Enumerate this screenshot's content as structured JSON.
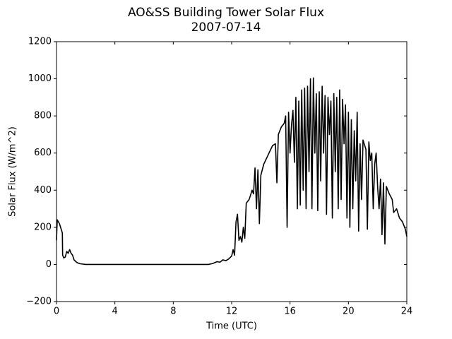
{
  "chart_data": {
    "type": "line",
    "title": "AO&SS Building Tower Solar Flux",
    "subtitle": "2007-07-14",
    "xlabel": "Time (UTC)",
    "ylabel": "Solar Flux (W/m^2)",
    "xlim": [
      0,
      24
    ],
    "xticks": [
      0,
      4,
      8,
      12,
      16,
      20,
      24
    ],
    "ylim": [
      -200,
      1200
    ],
    "yticks": [
      {
        "value": -200,
        "label": "−200"
      },
      0,
      200,
      400,
      600,
      800,
      1000,
      1200
    ],
    "series": [
      {
        "color": "#000000",
        "x": [
          0,
          0.05,
          0.2,
          0.4,
          0.42,
          0.5,
          0.6,
          0.7,
          0.8,
          0.9,
          1.0,
          1.1,
          1.2,
          1.4,
          1.6,
          2.0,
          4,
          8,
          10.4,
          10.7,
          11,
          11.2,
          11.4,
          11.6,
          11.8,
          12.0,
          12.1,
          12.2,
          12.3,
          12.4,
          12.5,
          12.6,
          12.7,
          12.8,
          12.9,
          13.0,
          13.2,
          13.4,
          13.5,
          13.6,
          13.7,
          13.8,
          13.9,
          14.0,
          14.2,
          14.5,
          14.8,
          15.0,
          15.1,
          15.2,
          15.4,
          15.6,
          15.7,
          15.8,
          15.9,
          16.0,
          16.1,
          16.2,
          16.3,
          16.4,
          16.5,
          16.6,
          16.7,
          16.8,
          16.9,
          17.0,
          17.1,
          17.2,
          17.3,
          17.4,
          17.5,
          17.6,
          17.7,
          17.8,
          17.9,
          18.0,
          18.1,
          18.2,
          18.3,
          18.4,
          18.5,
          18.6,
          18.7,
          18.8,
          18.9,
          19.0,
          19.1,
          19.2,
          19.3,
          19.4,
          19.5,
          19.6,
          19.7,
          19.8,
          19.9,
          20.0,
          20.1,
          20.2,
          20.3,
          20.4,
          20.5,
          20.6,
          20.7,
          20.8,
          20.9,
          21.0,
          21.2,
          21.3,
          21.4,
          21.5,
          21.6,
          21.7,
          21.8,
          21.9,
          22.0,
          22.1,
          22.2,
          22.3,
          22.4,
          22.5,
          22.6,
          22.8,
          23.0,
          23.1,
          23.3,
          23.5,
          23.7,
          23.9,
          24.0
        ],
        "values": [
          130,
          240,
          220,
          170,
          50,
          35,
          40,
          70,
          60,
          80,
          60,
          50,
          25,
          10,
          4,
          0,
          0,
          0,
          0,
          5,
          15,
          12,
          25,
          20,
          30,
          45,
          80,
          50,
          230,
          270,
          130,
          150,
          120,
          200,
          140,
          330,
          350,
          400,
          380,
          520,
          300,
          510,
          220,
          480,
          540,
          590,
          640,
          650,
          440,
          700,
          740,
          760,
          800,
          200,
          820,
          600,
          750,
          830,
          550,
          900,
          300,
          880,
          320,
          940,
          400,
          950,
          300,
          960,
          500,
          1000,
          300,
          1005,
          600,
          920,
          290,
          930,
          450,
          960,
          600,
          910,
          270,
          900,
          700,
          880,
          250,
          920,
          500,
          900,
          300,
          940,
          350,
          890,
          650,
          860,
          250,
          820,
          200,
          780,
          300,
          720,
          450,
          820,
          180,
          650,
          350,
          670,
          620,
          190,
          660,
          560,
          600,
          300,
          540,
          600,
          420,
          300,
          460,
          160,
          440,
          110,
          420,
          380,
          350,
          280,
          300,
          250,
          230,
          190,
          150
        ]
      }
    ]
  }
}
